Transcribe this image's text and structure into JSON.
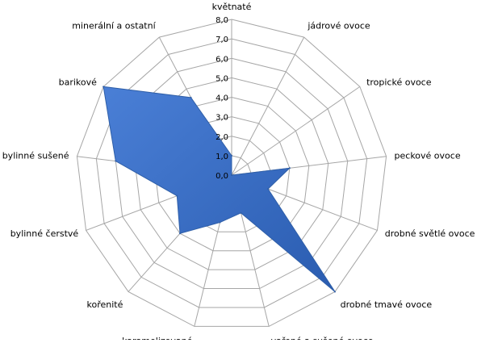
{
  "chart_data": {
    "type": "radar",
    "categories": [
      "květnaté",
      "jádrové ovoce",
      "tropické ovoce",
      "peckové ovoce",
      "drobné světlé ovoce",
      "drobné tmavé ovoce",
      "vařené a sušené ovoce",
      "karamelizované",
      "kořenité",
      "bylinné čerstvé",
      "bylinné sušené",
      "barikové",
      "minerální a ostatní"
    ],
    "series": [
      {
        "values": [
          1.0,
          0.0,
          0.0,
          3.0,
          2.0,
          8.0,
          2.0,
          2.5,
          4.0,
          3.0,
          6.0,
          8.0,
          4.5
        ]
      }
    ],
    "rlim": [
      0,
      8
    ],
    "tick_values": [
      0,
      1,
      2,
      3,
      4,
      5,
      6,
      7,
      8
    ],
    "tick_labels": [
      "0,0",
      "1,0",
      "2,0",
      "3,0",
      "4,0",
      "5,0",
      "6,0",
      "7,0",
      "8,0"
    ],
    "grid": true,
    "legend": "none",
    "colors": {
      "fill": "#4a7fd6",
      "fill_dark": "#2a5cb0",
      "stroke": "#2f5fa8",
      "grid": "#a6a6a6"
    }
  }
}
